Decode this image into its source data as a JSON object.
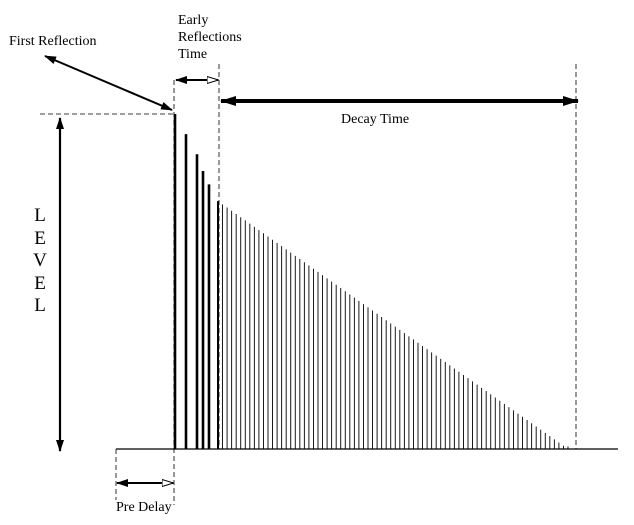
{
  "labels": {
    "first_reflection": "First Reflection",
    "early_reflections_time": [
      "Early",
      "Reflections",
      "Time"
    ],
    "decay_time": "Decay Time",
    "pre_delay": "Pre Delay",
    "level_letters": [
      "L",
      "E",
      "V",
      "E",
      "L"
    ]
  },
  "reflections": {
    "early_levels": [
      1.0,
      0.94,
      0.88,
      0.83,
      0.79
    ],
    "decay_start_level": 0.74,
    "decay_end_level": 0.0,
    "decay_line_count": 78
  },
  "colors": {
    "ink": "#000000",
    "background": "#ffffff"
  }
}
